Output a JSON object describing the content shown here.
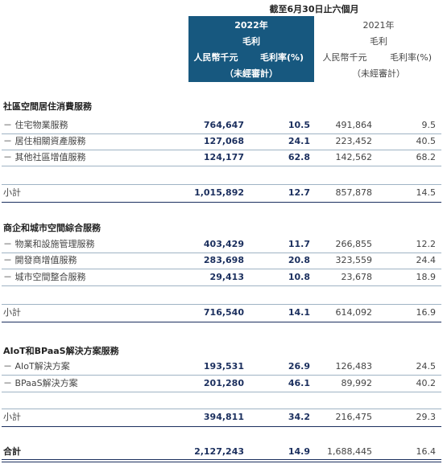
{
  "header": {
    "period": "截至6月30日止六個月",
    "years": [
      {
        "year": "2022年",
        "gross_profit": "毛利",
        "amount_unit": "人民幣千元",
        "margin_unit": "毛利率(%)",
        "audit": "（未經審計）"
      },
      {
        "year": "2021年",
        "gross_profit": "毛利",
        "amount_unit": "人民幣千元",
        "margin_unit": "毛利率(%)",
        "audit": "（未經審計）"
      }
    ]
  },
  "sections": [
    {
      "title": "社區空間居住消費服務",
      "rows": [
        {
          "label": "－ 住宅物業服務",
          "values": [
            "764,647",
            "10.5",
            "491,864",
            "9.5"
          ]
        },
        {
          "label": "－ 居住相關資產服務",
          "values": [
            "127,068",
            "24.1",
            "223,452",
            "40.5"
          ]
        },
        {
          "label": "－ 其他社區增值服務",
          "values": [
            "124,177",
            "62.8",
            "142,562",
            "68.2"
          ]
        }
      ],
      "subtotal": {
        "label": "小計",
        "values": [
          "1,015,892",
          "12.7",
          "857,878",
          "14.5"
        ]
      }
    },
    {
      "title": "商企和城市空間綜合服務",
      "rows": [
        {
          "label": "－ 物業和設施管理服務",
          "values": [
            "403,429",
            "11.7",
            "266,855",
            "12.2"
          ]
        },
        {
          "label": "－ 開發商增值服務",
          "values": [
            "283,698",
            "20.8",
            "323,559",
            "24.4"
          ]
        },
        {
          "label": "－ 城市空間整合服務",
          "values": [
            "29,413",
            "10.8",
            "23,678",
            "18.9"
          ]
        }
      ],
      "subtotal": {
        "label": "小計",
        "values": [
          "716,540",
          "14.1",
          "614,092",
          "16.9"
        ]
      }
    },
    {
      "title": "AIoT和BPaaS解決方案服務",
      "rows": [
        {
          "label": "－ AIoT解決方案",
          "values": [
            "193,531",
            "26.9",
            "126,483",
            "24.5"
          ]
        },
        {
          "label": "－ BPaaS解決方案",
          "values": [
            "201,280",
            "46.1",
            "89,992",
            "40.2"
          ]
        }
      ],
      "subtotal": {
        "label": "小計",
        "values": [
          "394,811",
          "34.2",
          "216,475",
          "29.3"
        ]
      }
    }
  ],
  "total": {
    "label": "合計",
    "values": [
      "2,127,243",
      "14.9",
      "1,688,445",
      "16.4"
    ]
  }
}
